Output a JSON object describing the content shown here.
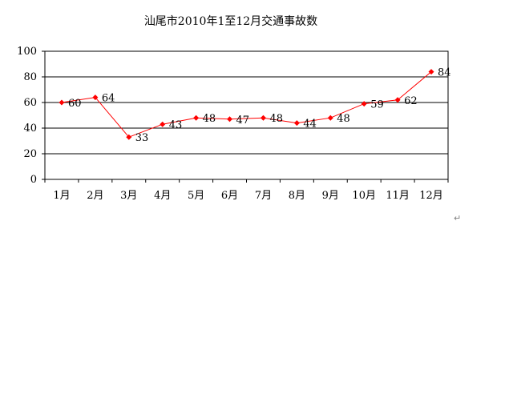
{
  "chart_data": {
    "type": "line",
    "title": "汕尾市2010年1至12月交通事故数",
    "categories": [
      "1月",
      "2月",
      "3月",
      "4月",
      "5月",
      "6月",
      "7月",
      "8月",
      "9月",
      "10月",
      "11月",
      "12月"
    ],
    "series": [
      {
        "values": [
          60,
          64,
          33,
          43,
          48,
          47,
          48,
          44,
          48,
          59,
          62,
          84
        ],
        "color": "#ff0000"
      }
    ],
    "data_labels": [
      "60",
      "64",
      "33",
      "43",
      "48",
      "47",
      "48",
      "44",
      "48",
      "59",
      "62",
      "84"
    ],
    "ylim": [
      0,
      100
    ],
    "yticks": [
      0,
      20,
      40,
      60,
      80,
      100
    ],
    "ytick_labels": [
      "0",
      "20",
      "40",
      "60",
      "80",
      "100"
    ],
    "xlabel": "",
    "ylabel": "",
    "grid": true,
    "legend": false,
    "line_color": "#ff0000",
    "marker": "diamond"
  },
  "paragraph_mark": "↵"
}
